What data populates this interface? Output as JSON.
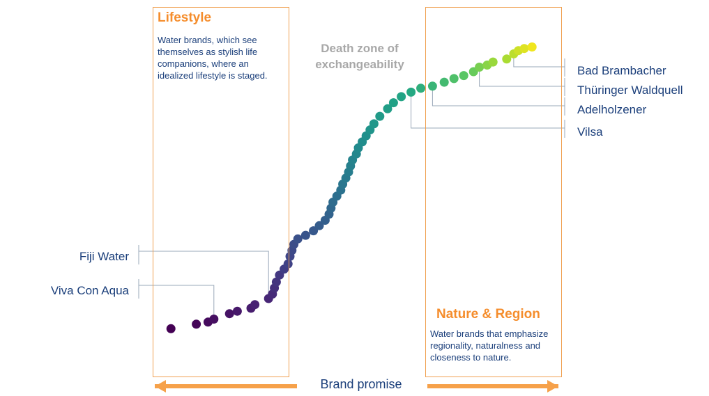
{
  "chart_data": {
    "type": "scatter",
    "title": "",
    "xlabel": "Brand promise",
    "ylabel": "",
    "grid": false,
    "xlim": [
      0,
      100
    ],
    "ylim": [
      0,
      100
    ],
    "colormap": "viridis",
    "points": [
      {
        "x": 2.0,
        "y": 2.0
      },
      {
        "x": 8.5,
        "y": 3.5
      },
      {
        "x": 11.5,
        "y": 4.2
      },
      {
        "x": 13.0,
        "y": 5.2
      },
      {
        "x": 17.0,
        "y": 7.0
      },
      {
        "x": 19.0,
        "y": 7.8
      },
      {
        "x": 22.5,
        "y": 8.8
      },
      {
        "x": 23.5,
        "y": 10.0
      },
      {
        "x": 27.0,
        "y": 12.0
      },
      {
        "x": 28.0,
        "y": 13.5
      },
      {
        "x": 28.5,
        "y": 15.5
      },
      {
        "x": 29.0,
        "y": 17.5
      },
      {
        "x": 29.8,
        "y": 19.8
      },
      {
        "x": 31.0,
        "y": 21.8
      },
      {
        "x": 32.0,
        "y": 23.5
      },
      {
        "x": 32.5,
        "y": 26.0
      },
      {
        "x": 33.0,
        "y": 28.0
      },
      {
        "x": 33.5,
        "y": 30.0
      },
      {
        "x": 34.5,
        "y": 31.8
      },
      {
        "x": 36.5,
        "y": 33.0
      },
      {
        "x": 38.5,
        "y": 34.5
      },
      {
        "x": 40.0,
        "y": 36.2
      },
      {
        "x": 41.5,
        "y": 38.0
      },
      {
        "x": 42.5,
        "y": 40.0
      },
      {
        "x": 43.0,
        "y": 42.0
      },
      {
        "x": 43.5,
        "y": 44.0
      },
      {
        "x": 44.5,
        "y": 46.0
      },
      {
        "x": 45.5,
        "y": 48.0
      },
      {
        "x": 46.0,
        "y": 50.0
      },
      {
        "x": 46.8,
        "y": 52.0
      },
      {
        "x": 47.5,
        "y": 54.0
      },
      {
        "x": 48.0,
        "y": 56.0
      },
      {
        "x": 48.5,
        "y": 58.0
      },
      {
        "x": 49.5,
        "y": 60.0
      },
      {
        "x": 50.0,
        "y": 62.0
      },
      {
        "x": 51.0,
        "y": 64.0
      },
      {
        "x": 52.0,
        "y": 66.0
      },
      {
        "x": 53.0,
        "y": 68.0
      },
      {
        "x": 54.0,
        "y": 70.0
      },
      {
        "x": 55.5,
        "y": 72.5
      },
      {
        "x": 57.5,
        "y": 75.0
      },
      {
        "x": 59.0,
        "y": 77.0
      },
      {
        "x": 61.0,
        "y": 79.0
      },
      {
        "x": 63.5,
        "y": 80.5
      },
      {
        "x": 66.0,
        "y": 81.8
      },
      {
        "x": 69.0,
        "y": 82.5
      },
      {
        "x": 72.0,
        "y": 83.8
      },
      {
        "x": 74.5,
        "y": 85.0
      },
      {
        "x": 77.0,
        "y": 86.0
      },
      {
        "x": 79.5,
        "y": 87.3
      },
      {
        "x": 81.0,
        "y": 88.8
      },
      {
        "x": 83.0,
        "y": 89.5
      },
      {
        "x": 84.5,
        "y": 90.5
      },
      {
        "x": 88.0,
        "y": 91.5
      },
      {
        "x": 89.8,
        "y": 93.2
      },
      {
        "x": 91.0,
        "y": 94.3
      },
      {
        "x": 92.5,
        "y": 95.0
      },
      {
        "x": 94.5,
        "y": 95.5
      }
    ],
    "annotations": [
      {
        "label": "Fiji Water",
        "point": 8,
        "side": "left"
      },
      {
        "label": "Viva Con Aqua",
        "point": 3,
        "side": "left"
      },
      {
        "label": "Bad Brambacher",
        "point": 54,
        "side": "right"
      },
      {
        "label": "Thüringer Waldquell",
        "point": 50,
        "side": "right"
      },
      {
        "label": "Adelholzener",
        "point": 45,
        "side": "right"
      },
      {
        "label": "Vilsa",
        "point": 43,
        "side": "right"
      }
    ],
    "zones": [
      {
        "title": "Lifestyle",
        "description": "Water brands, which see themselves as stylish life companions, where an idealized lifestyle is staged."
      },
      {
        "title": "Nature & Region",
        "description": "Water brands that emphasize regionality, naturalness and closeness to nature."
      }
    ],
    "middle_label": "Death zone of exchangeability",
    "colors": {
      "zone_border": "#f0a050",
      "zone_title": "#f58d2c",
      "arrow": "#f6a14a",
      "text": "#1a3e7a",
      "connector": "#9aa8b8",
      "middle_label": "#a8a8a8"
    }
  }
}
